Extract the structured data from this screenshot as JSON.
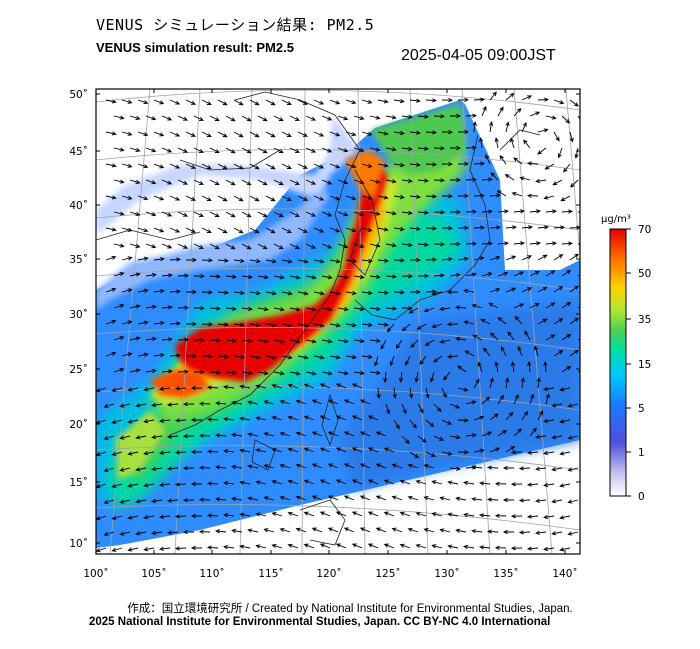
{
  "title_jp": "VENUS シミュレーション結果: PM2.5",
  "title_en": "VENUS simulation result: PM2.5",
  "timestamp": "2025-04-05 09:00JST",
  "map": {
    "lat_labels": [
      "50˚",
      "45˚",
      "40˚",
      "35˚",
      "30˚",
      "25˚",
      "20˚",
      "15˚",
      "10˚"
    ],
    "lon_labels": [
      "100˚",
      "105˚",
      "110˚",
      "115˚",
      "120˚",
      "125˚",
      "130˚",
      "135˚",
      "140˚"
    ]
  },
  "colorbar": {
    "unit": "μg/m³",
    "tick_labels": [
      "70",
      "50",
      "35",
      "15",
      "5",
      "1",
      "0"
    ],
    "colors": [
      "#ffffff",
      "#6a5acd",
      "#1e64ff",
      "#00c8ff",
      "#00e0a0",
      "#50d050",
      "#b4e632",
      "#ffd200",
      "#ff7800",
      "#e60000"
    ]
  },
  "credit": "作成：国立環境研究所 / Created by National Institute for Environmental Studies, Japan.",
  "copyright": "2025 National Institute for Environmental Studies, Japan. CC BY-NC 4.0 International"
}
